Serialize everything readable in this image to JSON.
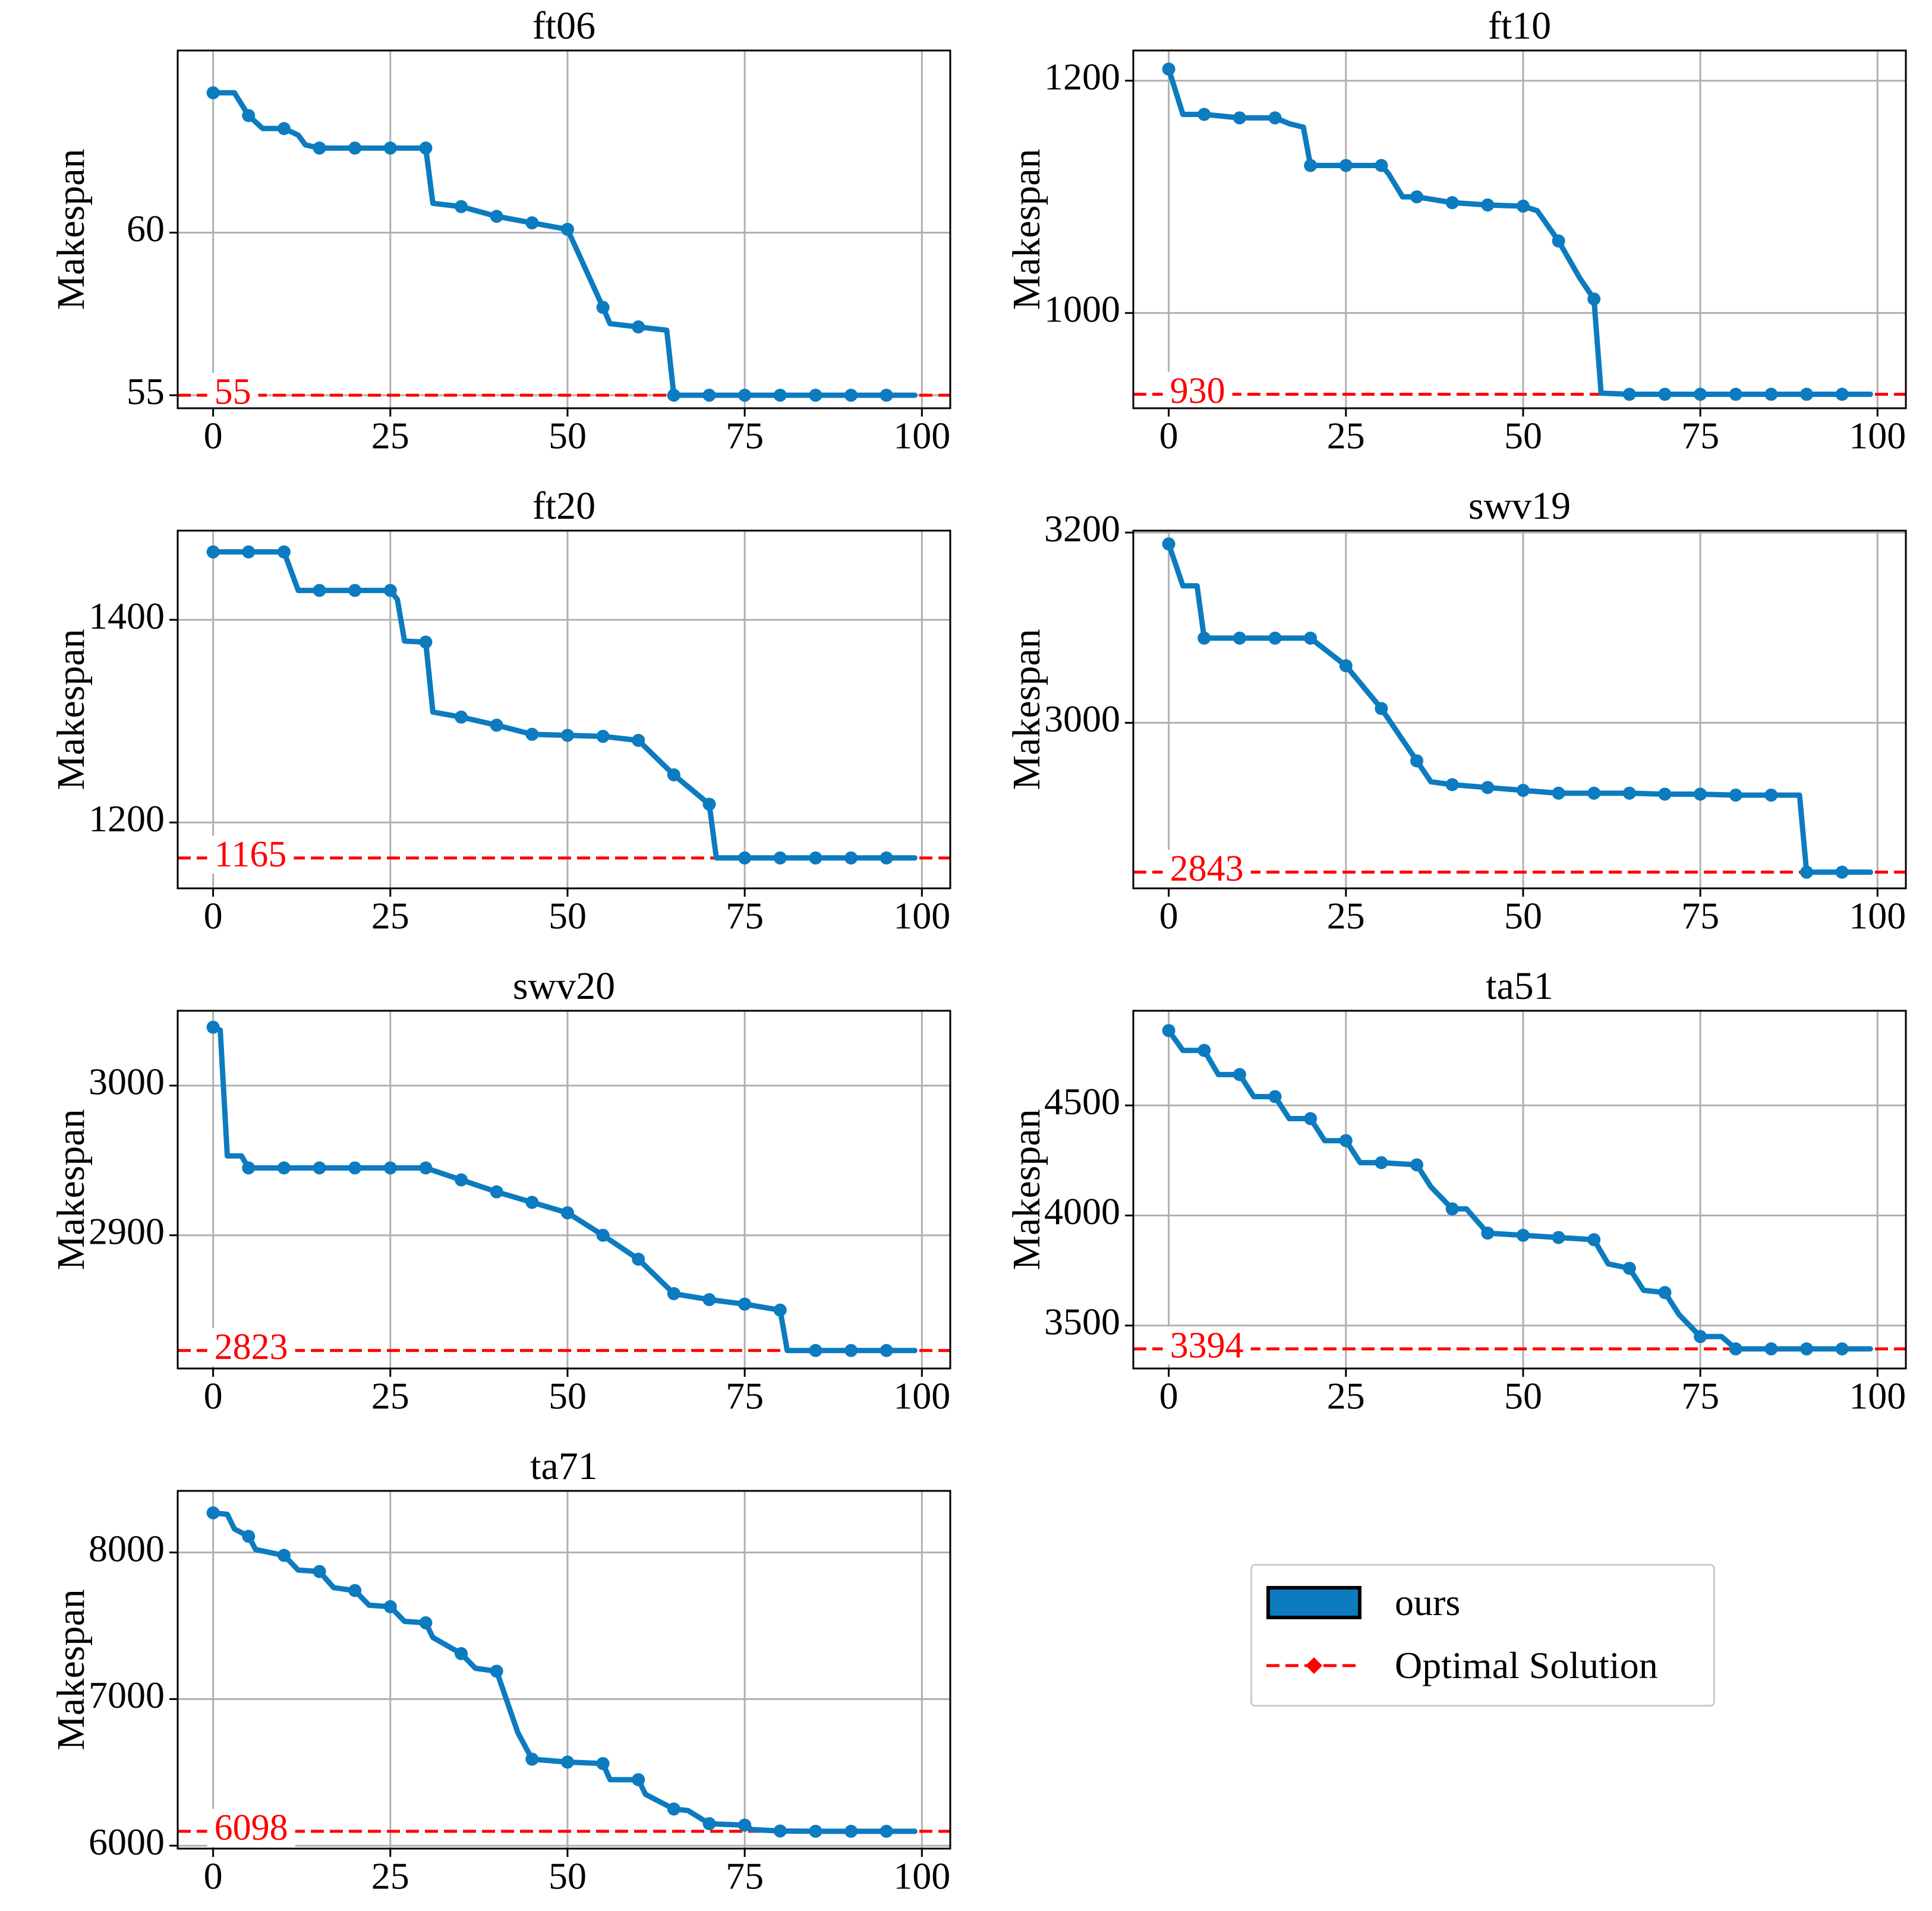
{
  "colors": {
    "ours": "#0c7bbf",
    "optimal": "#ff0000",
    "grid": "#b0b0b0"
  },
  "legend": {
    "ours_label": "ours",
    "optimal_label": "Optimal Solution"
  },
  "chart_data": [
    {
      "type": "line",
      "title": "ft06",
      "xlabel": "",
      "ylabel": "Makespan",
      "xlim": [
        -5,
        104
      ],
      "ylim": [
        54.6,
        65.6
      ],
      "xticks": [
        0,
        25,
        50,
        75,
        100
      ],
      "yticks": [
        55,
        60
      ],
      "optimal": 55,
      "optimal_label": "55",
      "series": [
        {
          "name": "ours",
          "x": [
            0,
            3,
            5,
            7,
            10,
            12,
            13,
            15,
            20,
            25,
            30,
            31,
            35,
            40,
            45,
            50,
            55,
            56,
            60,
            64,
            65,
            70,
            75,
            80,
            85,
            90,
            95,
            99
          ],
          "y": [
            64.3,
            64.3,
            63.6,
            63.2,
            63.2,
            63.0,
            62.7,
            62.6,
            62.6,
            62.6,
            62.6,
            60.9,
            60.8,
            60.5,
            60.3,
            60.1,
            57.7,
            57.2,
            57.1,
            57.0,
            55.0,
            55.0,
            55.0,
            55.0,
            55.0,
            55.0,
            55.0,
            55.0
          ]
        }
      ]
    },
    {
      "type": "line",
      "title": "ft10",
      "xlabel": "",
      "ylabel": "Makespan",
      "xlim": [
        -5,
        104
      ],
      "ylim": [
        918,
        1226
      ],
      "xticks": [
        0,
        25,
        50,
        75,
        100
      ],
      "yticks": [
        1000,
        1200
      ],
      "optimal": 930,
      "optimal_label": "930",
      "series": [
        {
          "name": "ours",
          "x": [
            0,
            2,
            5,
            10,
            13,
            15,
            17,
            19,
            20,
            25,
            30,
            31,
            33,
            35,
            40,
            45,
            50,
            52,
            55,
            58,
            60,
            61,
            65,
            70,
            75,
            80,
            85,
            90,
            95,
            99
          ],
          "y": [
            1210,
            1171,
            1171,
            1168,
            1168,
            1168,
            1163,
            1160,
            1127,
            1127,
            1127,
            1120,
            1100,
            1100,
            1095,
            1093,
            1092,
            1088,
            1062,
            1030,
            1012,
            931,
            930,
            930,
            930,
            930,
            930,
            930,
            930,
            930
          ]
        }
      ]
    },
    {
      "type": "line",
      "title": "ft20",
      "xlabel": "",
      "ylabel": "Makespan",
      "xlim": [
        -5,
        104
      ],
      "ylim": [
        1135,
        1488
      ],
      "xticks": [
        0,
        25,
        50,
        75,
        100
      ],
      "yticks": [
        1200,
        1400
      ],
      "optimal": 1165,
      "optimal_label": "1165",
      "series": [
        {
          "name": "ours",
          "x": [
            0,
            5,
            10,
            12,
            15,
            20,
            25,
            26,
            27,
            30,
            31,
            35,
            40,
            45,
            50,
            55,
            60,
            65,
            70,
            71,
            75,
            80,
            85,
            90,
            95,
            99
          ],
          "y": [
            1467,
            1467,
            1467,
            1429,
            1429,
            1429,
            1429,
            1420,
            1379,
            1378,
            1309,
            1304,
            1296,
            1287,
            1286,
            1285,
            1281,
            1247,
            1218,
            1165,
            1165,
            1165,
            1165,
            1165,
            1165,
            1165
          ]
        }
      ]
    },
    {
      "type": "line",
      "title": "swv19",
      "xlabel": "",
      "ylabel": "Makespan",
      "xlim": [
        -5,
        104
      ],
      "ylim": [
        2826,
        3202
      ],
      "xticks": [
        0,
        25,
        50,
        75,
        100
      ],
      "yticks": [
        3000,
        3200
      ],
      "optimal": 2843,
      "optimal_label": "2843",
      "series": [
        {
          "name": "ours",
          "x": [
            0,
            2,
            4,
            5,
            10,
            15,
            20,
            25,
            30,
            35,
            37,
            40,
            45,
            50,
            55,
            60,
            65,
            70,
            75,
            80,
            85,
            89,
            90,
            95,
            99
          ],
          "y": [
            3188,
            3144,
            3144,
            3089,
            3089,
            3089,
            3089,
            3060,
            3015,
            2960,
            2938,
            2935,
            2932,
            2929,
            2926,
            2926,
            2926,
            2925,
            2925,
            2924,
            2924,
            2924,
            2843,
            2843,
            2843
          ]
        }
      ]
    },
    {
      "type": "line",
      "title": "swv20",
      "xlabel": "",
      "ylabel": "Makespan",
      "xlim": [
        -5,
        104
      ],
      "ylim": [
        2811,
        3050
      ],
      "xticks": [
        0,
        25,
        50,
        75,
        100
      ],
      "yticks": [
        2900,
        3000
      ],
      "optimal": 2823,
      "optimal_label": "2823",
      "series": [
        {
          "name": "ours",
          "x": [
            0,
            1,
            2,
            4,
            5,
            10,
            15,
            20,
            25,
            30,
            35,
            40,
            45,
            50,
            55,
            60,
            65,
            70,
            75,
            80,
            81,
            85,
            90,
            95,
            99
          ],
          "y": [
            3039,
            3037,
            2953,
            2953,
            2945,
            2945,
            2945,
            2945,
            2945,
            2945,
            2937,
            2929,
            2922,
            2915,
            2900,
            2884,
            2861,
            2857,
            2854,
            2850,
            2823,
            2823,
            2823,
            2823,
            2823
          ]
        }
      ]
    },
    {
      "type": "line",
      "title": "ta51",
      "xlabel": "",
      "ylabel": "Makespan",
      "xlim": [
        -5,
        104
      ],
      "ylim": [
        3305,
        4930
      ],
      "xticks": [
        0,
        25,
        50,
        75,
        100
      ],
      "yticks": [
        3500,
        4000,
        4500
      ],
      "optimal": 3394,
      "optimal_label": "3394",
      "series": [
        {
          "name": "ours",
          "x": [
            0,
            2,
            5,
            7,
            10,
            12,
            15,
            17,
            20,
            22,
            25,
            27,
            30,
            35,
            37,
            40,
            42,
            45,
            50,
            55,
            60,
            62,
            65,
            67,
            70,
            72,
            75,
            78,
            80,
            85,
            90,
            95,
            99
          ],
          "y": [
            4840,
            4750,
            4750,
            4640,
            4640,
            4540,
            4540,
            4440,
            4440,
            4340,
            4340,
            4240,
            4240,
            4230,
            4130,
            4030,
            4030,
            3920,
            3910,
            3900,
            3890,
            3780,
            3760,
            3660,
            3650,
            3550,
            3450,
            3450,
            3394,
            3394,
            3394,
            3394,
            3394
          ]
        }
      ]
    },
    {
      "type": "line",
      "title": "ta71",
      "xlabel": "",
      "ylabel": "Makespan",
      "xlim": [
        -5,
        104
      ],
      "ylim": [
        5980,
        8420
      ],
      "xticks": [
        0,
        25,
        50,
        75,
        100
      ],
      "yticks": [
        6000,
        7000,
        8000
      ],
      "optimal": 6098,
      "optimal_label": "6098",
      "series": [
        {
          "name": "ours",
          "x": [
            0,
            2,
            3,
            5,
            6,
            10,
            12,
            15,
            17,
            20,
            22,
            25,
            27,
            30,
            31,
            35,
            37,
            40,
            43,
            45,
            50,
            55,
            56,
            60,
            61,
            65,
            67,
            70,
            75,
            76,
            80,
            85,
            90,
            95,
            99
          ],
          "y": [
            8270,
            8260,
            8160,
            8110,
            8020,
            7980,
            7880,
            7870,
            7760,
            7740,
            7640,
            7630,
            7530,
            7520,
            7420,
            7310,
            7210,
            7190,
            6770,
            6590,
            6570,
            6560,
            6450,
            6450,
            6350,
            6250,
            6240,
            6150,
            6140,
            6110,
            6100,
            6098,
            6098,
            6098,
            6098
          ]
        }
      ]
    }
  ]
}
